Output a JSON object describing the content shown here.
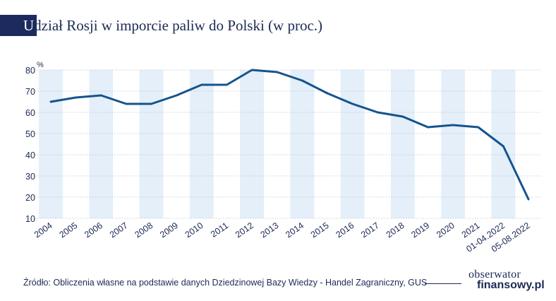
{
  "title": {
    "first_letter": "U",
    "rest": "dział Rosji w imporcie paliw do Polski (w proc.)"
  },
  "chart_data": {
    "type": "line",
    "title": "Udział Rosji w imporcie paliw do Polski (w proc.)",
    "unit": "%",
    "categories": [
      "2004",
      "2005",
      "2006",
      "2007",
      "2008",
      "2009",
      "2010",
      "2011",
      "2012",
      "2013",
      "2014",
      "2015",
      "2016",
      "2017",
      "2018",
      "2019",
      "2020",
      "2021",
      "01-04.2022",
      "05-08.2022"
    ],
    "series": [
      {
        "values": [
          65,
          67,
          68,
          64,
          64,
          68,
          73,
          73,
          80,
          79,
          75,
          69,
          64,
          60,
          58,
          53,
          54,
          53,
          44,
          19
        ]
      }
    ],
    "ylim": [
      10,
      80
    ],
    "yticks": [
      10,
      20,
      30,
      40,
      50,
      60,
      70,
      80
    ],
    "ytick_labels": [
      "10",
      "20",
      "30",
      "40",
      "50",
      "60",
      "70",
      "80"
    ],
    "line_color": "#15548c",
    "band_color": "#e4eff9",
    "grid": true,
    "legend": "none"
  },
  "footer": {
    "source": "Źródło: Obliczenia własne na podstawie danych Dziedzinowej Bazy Wiedzy - Handel Zagraniczny, GUS",
    "logo_top": "obserwator",
    "logo_bottom": "finansowy.pl"
  }
}
